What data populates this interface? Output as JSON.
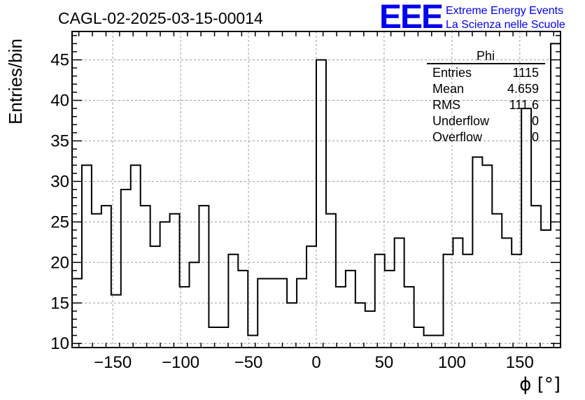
{
  "chart_data": {
    "type": "histogram",
    "title": "CAGL-02-2025-03-15-00014",
    "xlabel": "ϕ [°]",
    "ylabel": "Entries/bin",
    "xlim": [
      -180,
      180
    ],
    "ylim": [
      9.5,
      48.5
    ],
    "grid": true,
    "bin_width": 7.2,
    "x_ticks": [
      -150,
      -100,
      -50,
      0,
      50,
      100,
      150
    ],
    "x_tick_labels": [
      "−150",
      "−100",
      "−50",
      "0",
      "50",
      "100",
      "150"
    ],
    "y_ticks": [
      10,
      15,
      20,
      25,
      30,
      35,
      40,
      45
    ],
    "y_tick_labels": [
      "10",
      "15",
      "20",
      "25",
      "30",
      "35",
      "40",
      "45"
    ],
    "values": [
      18,
      32,
      26,
      27,
      16,
      29,
      32,
      27,
      22,
      25,
      26,
      17,
      20,
      27,
      12,
      12,
      21,
      19,
      11,
      18,
      18,
      18,
      15,
      18,
      22,
      45,
      26,
      17,
      19,
      15,
      14,
      21,
      19,
      23,
      17,
      12,
      11,
      11,
      21,
      23,
      21,
      33,
      32,
      26,
      23,
      21,
      39,
      27,
      24,
      47
    ],
    "stats": {
      "name": "Phi",
      "rows": [
        {
          "label": "Entries",
          "value": "1115"
        },
        {
          "label": "Mean",
          "value": "4.659"
        },
        {
          "label": "RMS",
          "value": "111.6"
        },
        {
          "label": "Underflow",
          "value": "0"
        },
        {
          "label": "Overflow",
          "value": "0"
        }
      ]
    }
  },
  "logo": {
    "mark": "EEE",
    "line1": "Extreme Energy Events",
    "line2": "La Scienza nelle Scuole",
    "color": "#0000ee"
  },
  "colors": {
    "line": "#000000",
    "grid": "#9a9a9a"
  }
}
